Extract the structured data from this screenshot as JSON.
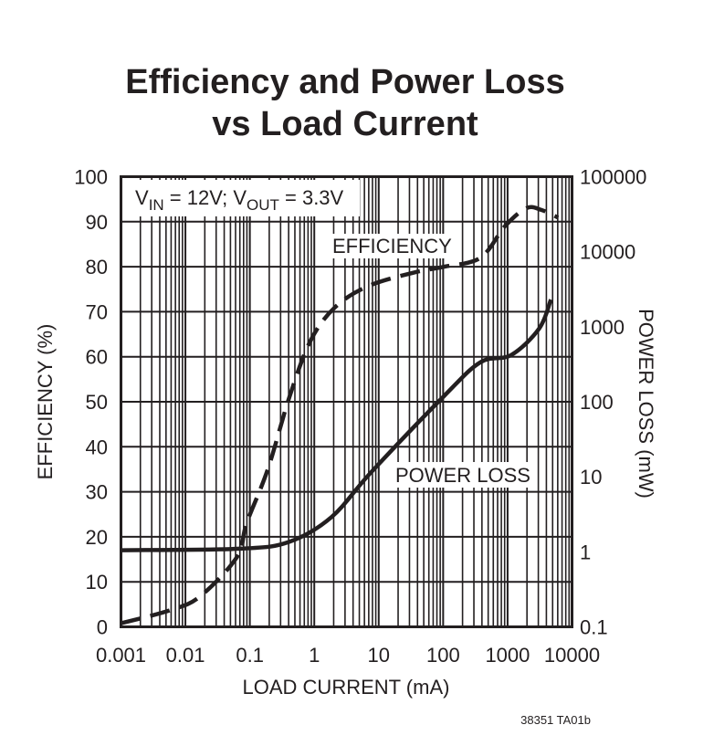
{
  "chart_data": {
    "type": "line",
    "title": [
      "Efficiency and Power Loss",
      "vs Load Current"
    ],
    "xlabel": "LOAD CURRENT (mA)",
    "ylabel": "EFFICIENCY (%)",
    "y2label": "POWER LOSS (mW)",
    "xscale": "log",
    "xlim": [
      0.001,
      10000
    ],
    "ylim": [
      0,
      100
    ],
    "y2scale": "log",
    "y2lim": [
      0.1,
      100000
    ],
    "grid": true,
    "x_ticks": [
      "0.001",
      "0.01",
      "0.1",
      "1",
      "10",
      "100",
      "1000",
      "10000"
    ],
    "y_ticks": [
      "0",
      "10",
      "20",
      "30",
      "40",
      "50",
      "60",
      "70",
      "80",
      "90",
      "100"
    ],
    "y2_ticks": [
      "0.1",
      "1",
      "10",
      "100",
      "1000",
      "10000",
      "100000"
    ],
    "annotation": {
      "v": "V",
      "in": "IN",
      "eq1": " = 12V; V",
      "out": "OUT",
      "eq2": " = 3.3V"
    },
    "series": [
      {
        "name": "EFFICIENCY",
        "axis": "left",
        "style": "dashed",
        "x": [
          0.001,
          0.0058,
          0.017,
          0.063,
          0.089,
          0.19,
          0.41,
          0.87,
          2.1,
          6.9,
          35,
          104,
          380,
          910,
          1950,
          3370,
          6100
        ],
        "y": [
          0.8,
          3.7,
          6.8,
          15.5,
          23,
          35,
          51,
          63.5,
          71,
          75.7,
          78.7,
          80,
          82,
          89,
          93,
          92.6,
          90.9
        ]
      },
      {
        "name": "POWER LOSS",
        "axis": "right",
        "style": "solid",
        "x": [
          0.001,
          0.071,
          0.41,
          1.85,
          7.7,
          104,
          380,
          1140,
          3100,
          4700
        ],
        "y": [
          1.05,
          1.1,
          1.36,
          2.9,
          11.6,
          120,
          337,
          420,
          950,
          2300
        ]
      }
    ],
    "colors": {
      "ink": "#231f20",
      "background": "#ffffff"
    }
  },
  "footer": "38351 TA01b"
}
